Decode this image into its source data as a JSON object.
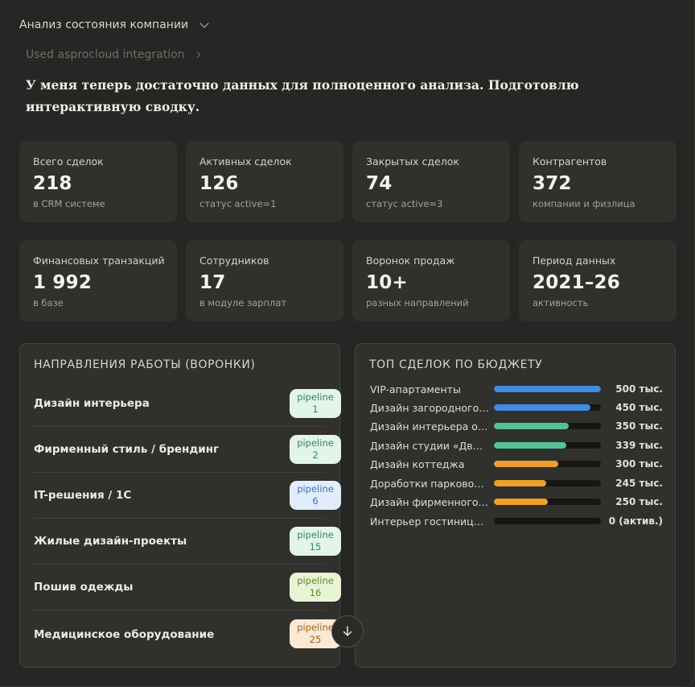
{
  "header": {
    "title": "Анализ состояния компании"
  },
  "integration": {
    "label": "Used asprocloud integration"
  },
  "intro": {
    "text": "У меня теперь достаточно данных для полноценного анализа. Подготовлю интерактивную сводку."
  },
  "stats": [
    {
      "label": "Всего сделок",
      "value": "218",
      "sub": "в CRM системе"
    },
    {
      "label": "Активных сделок",
      "value": "126",
      "sub": "статус active=1"
    },
    {
      "label": "Закрытых сделок",
      "value": "74",
      "sub": "статус active=3"
    },
    {
      "label": "Контрагентов",
      "value": "372",
      "sub": "компании и физлица"
    },
    {
      "label": "Финансовых транзакций",
      "value": "1 992",
      "sub": "в базе"
    },
    {
      "label": "Сотрудников",
      "value": "17",
      "sub": "в модуле зарплат"
    },
    {
      "label": "Воронок продаж",
      "value": "10+",
      "sub": "разных направлений"
    },
    {
      "label": "Период данных",
      "value": "2021–26",
      "sub": "активность"
    }
  ],
  "funnels": {
    "title": "НАПРАВЛЕНИЯ РАБОТЫ (ВОРОНКИ)",
    "items": [
      {
        "name": "Дизайн интерьера",
        "pill_label": "pipeline",
        "pill_num": "1",
        "bg": "#e3f4ea",
        "fg": "#2f8a58"
      },
      {
        "name": "Фирменный стиль / брендинг",
        "pill_label": "pipeline",
        "pill_num": "2",
        "bg": "#e3f4ea",
        "fg": "#2f8a58"
      },
      {
        "name": "IT-решения / 1С",
        "pill_label": "pipeline",
        "pill_num": "6",
        "bg": "#e2edfb",
        "fg": "#3b6fbf"
      },
      {
        "name": "Жилые дизайн-проекты",
        "pill_label": "pipeline",
        "pill_num": "15",
        "bg": "#e3f4ea",
        "fg": "#2f8a58"
      },
      {
        "name": "Пошив одежды",
        "pill_label": "pipeline",
        "pill_num": "16",
        "bg": "#e9f4d6",
        "fg": "#5e8a1c"
      },
      {
        "name": "Медицинское оборудование",
        "pill_label": "pipeline",
        "pill_num": "25",
        "bg": "#fbe9d5",
        "fg": "#a0621b"
      }
    ]
  },
  "deals": {
    "title": "ТОП СДЕЛОК ПО БЮДЖЕТУ",
    "items": [
      {
        "name": "VIP-апартаменты",
        "value": "500 тыс.",
        "fill": 1.0,
        "color": "#3f8ce0"
      },
      {
        "name": "Дизайн загородного …",
        "value": "450 тыс.",
        "fill": 0.9,
        "color": "#3f8ce0"
      },
      {
        "name": "Дизайн интерьера от…",
        "value": "350 тыс.",
        "fill": 0.7,
        "color": "#54c197"
      },
      {
        "name": "Дизайн студии «Движ»",
        "value": "339 тыс.",
        "fill": 0.68,
        "color": "#54c197"
      },
      {
        "name": "Дизайн коттеджа",
        "value": "300 тыс.",
        "fill": 0.6,
        "color": "#eb9f2c"
      },
      {
        "name": "Доработки парковой …",
        "value": "245 тыс.",
        "fill": 0.49,
        "color": "#eb9f2c"
      },
      {
        "name": "Дизайн фирменного …",
        "value": "250 тыс.",
        "fill": 0.5,
        "color": "#eb9f2c"
      },
      {
        "name": "Интерьер гостиницы …",
        "value": "0 (актив.)",
        "fill": 0.0,
        "color": "#eb9f2c"
      }
    ]
  },
  "icons": {
    "header_chevron": "chevron-down-icon",
    "integration_chevron": "chevron-right-icon",
    "scroll": "arrow-down-icon"
  }
}
